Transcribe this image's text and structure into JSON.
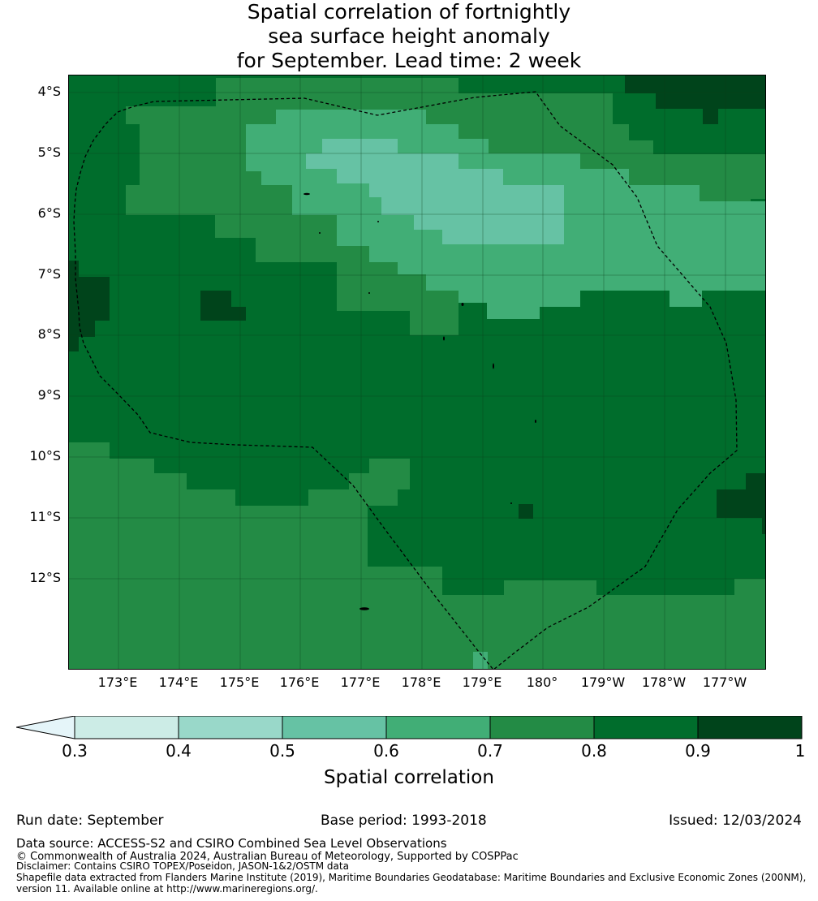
{
  "title": {
    "line1": "Spatial correlation of fortnightly",
    "line2": "sea surface height anomaly",
    "line3": "for September. Lead time: 2 week"
  },
  "map": {
    "latitude_labels": [
      "4°S",
      "5°S",
      "6°S",
      "7°S",
      "8°S",
      "9°S",
      "10°S",
      "11°S",
      "12°S"
    ],
    "longitude_labels": [
      "173°E",
      "174°E",
      "175°E",
      "176°E",
      "177°E",
      "178°E",
      "179°E",
      "180°",
      "179°W",
      "178°W",
      "177°W"
    ],
    "boundary_style": "dashed",
    "gridlines": true
  },
  "colorbar": {
    "label": "Spatial correlation",
    "ticks": [
      "0.3",
      "0.4",
      "0.5",
      "0.6",
      "0.7",
      "0.8",
      "0.9",
      "1"
    ],
    "extend": "min",
    "colors": [
      "#e5f5f9",
      "#ccece6",
      "#99d8c9",
      "#66c2a4",
      "#41ae76",
      "#238b45",
      "#006d2c",
      "#00441b"
    ]
  },
  "footer": {
    "run_date": "Run date: September",
    "base_period": "Base period: 1993-2018",
    "issued": "Issued: 12/03/2024",
    "data_source": "Data source: ACCESS-S2 and CSIRO Combined Sea Level Observations",
    "copyright": "© Commonwealth of Australia 2024, Australian Bureau of Meteorology, Supported by COSPPac",
    "disclaimer": "Disclaimer: Contains CSIRO TOPEX/Poseidon, JASON-1&2/OSTM data",
    "shapefile_line1": "Shapefile data extracted from Flanders Marine Institute (2019), Maritime Boundaries Geodatabase: Maritime Boundaries and Exclusive Economic Zones (200NM),",
    "shapefile_line2": "version 11. Available online at http://www.marineregions.org/."
  }
}
